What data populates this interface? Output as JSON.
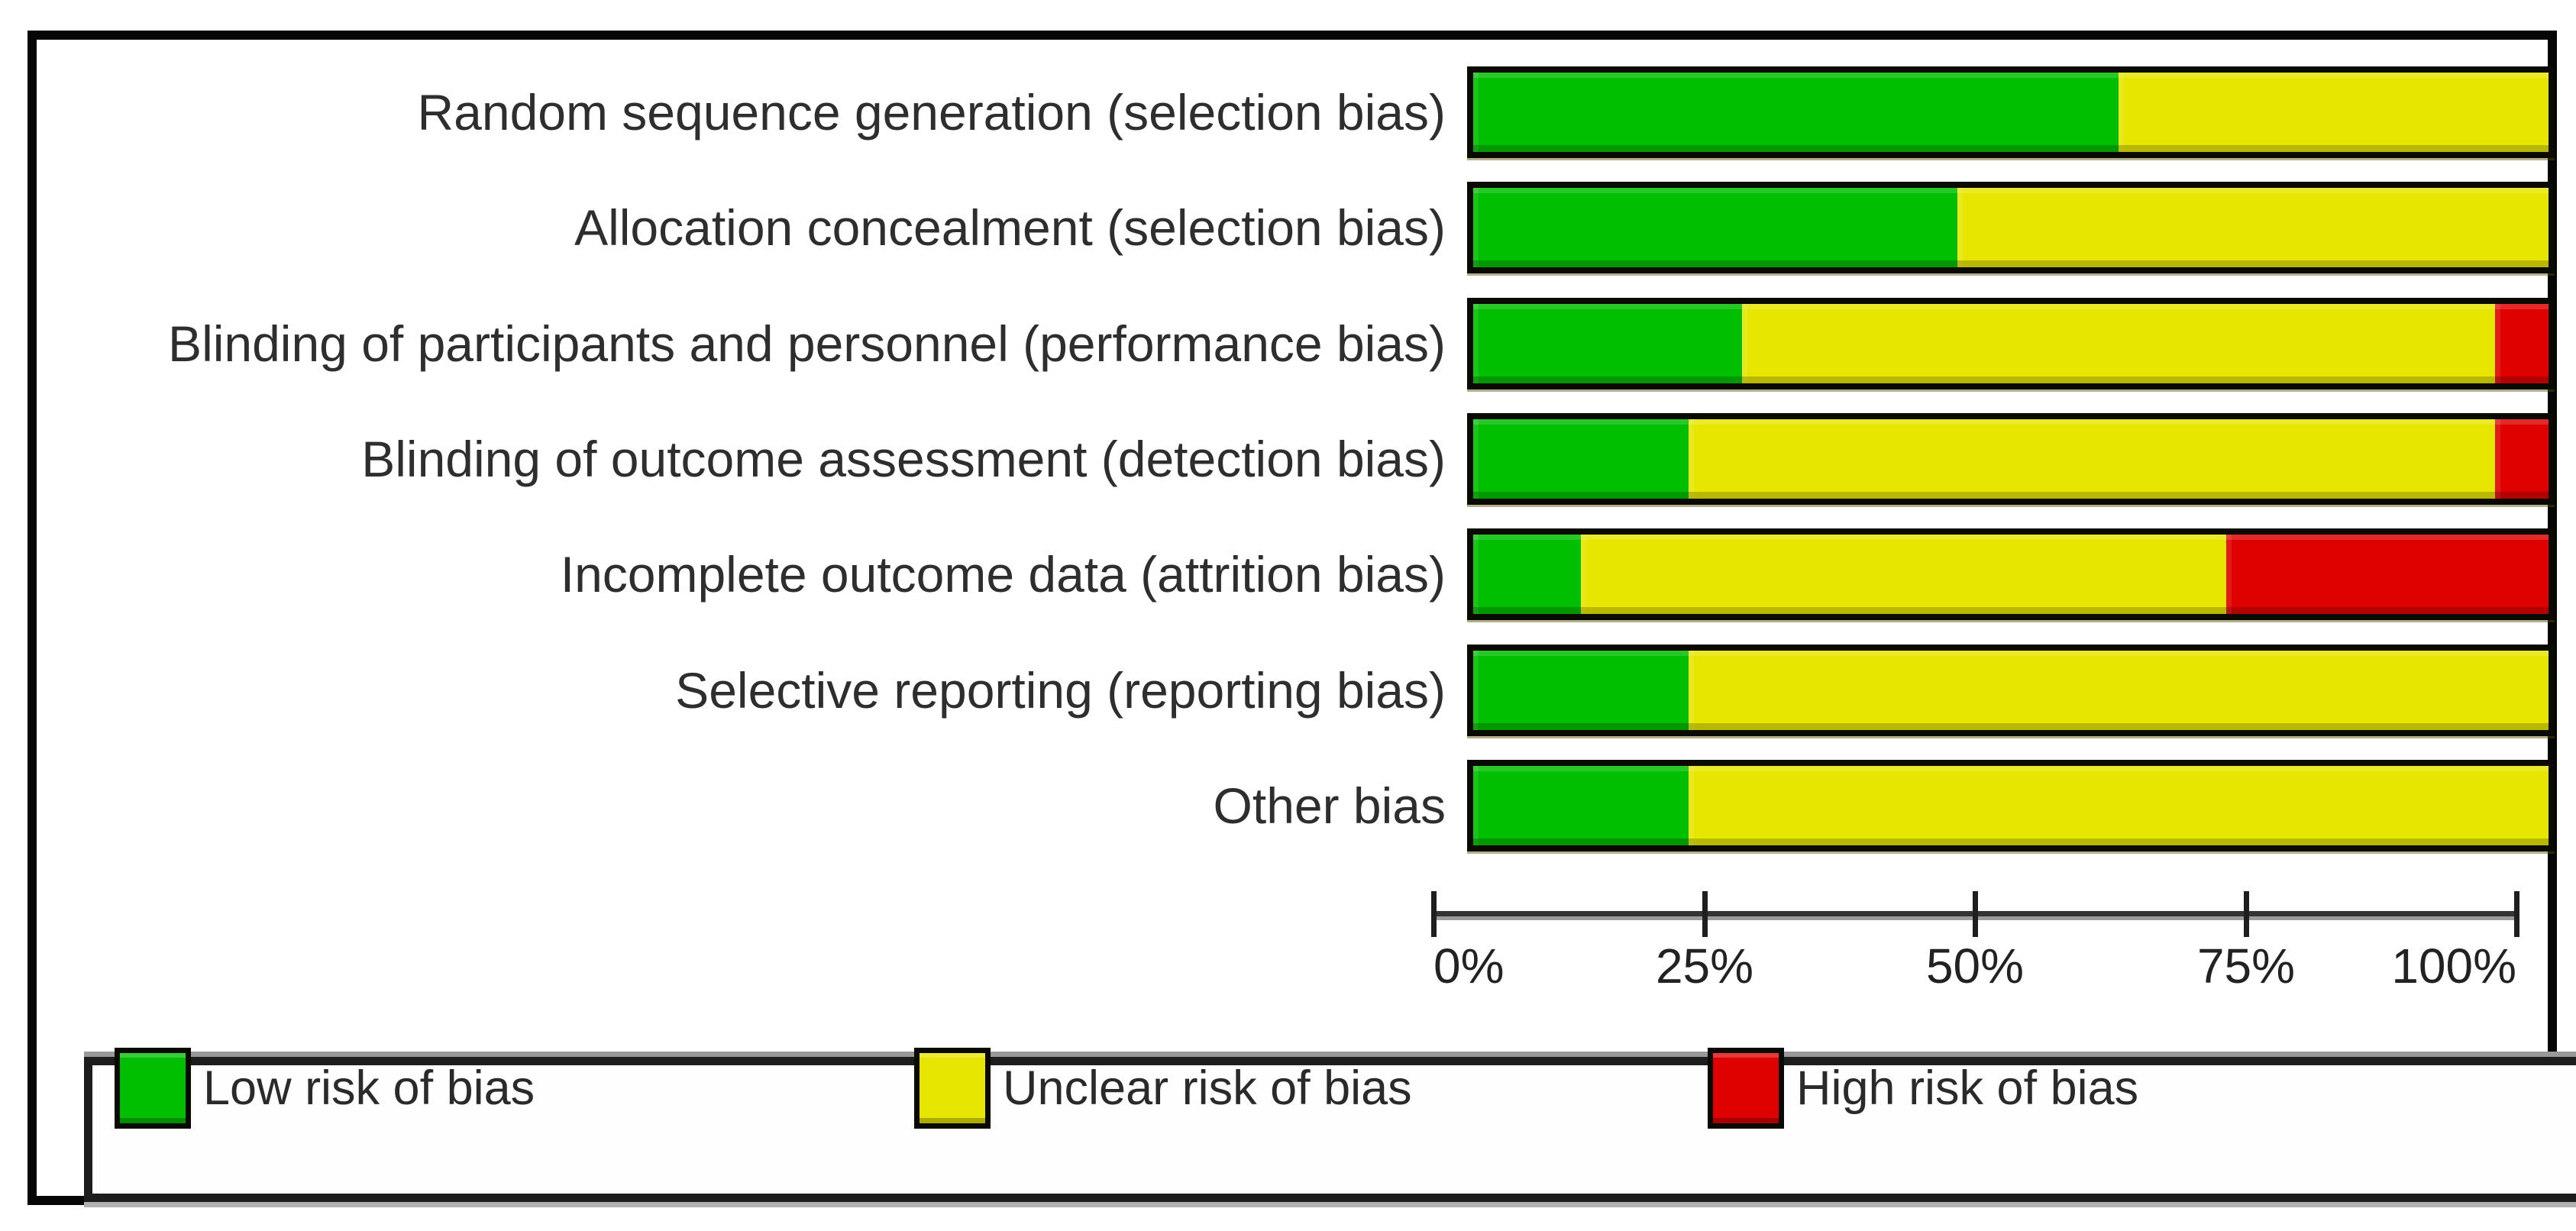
{
  "chart_data": {
    "type": "bar",
    "orientation": "horizontal-stacked",
    "categories": [
      "Random sequence generation (selection bias)",
      "Allocation concealment (selection bias)",
      "Blinding of participants and personnel (performance bias)",
      "Blinding of outcome assessment (detection bias)",
      "Incomplete outcome data (attrition bias)",
      "Selective reporting (reporting bias)",
      "Other bias"
    ],
    "series": [
      {
        "name": "Low risk of bias",
        "color": "#00BE00",
        "values": [
          60,
          45,
          25,
          20,
          10,
          20,
          20
        ]
      },
      {
        "name": "Unclear risk of bias",
        "color": "#E6E600",
        "values": [
          40,
          55,
          70,
          75,
          60,
          80,
          80
        ]
      },
      {
        "name": "High risk of bias",
        "color": "#DF0000",
        "values": [
          0,
          0,
          5,
          5,
          30,
          0,
          0
        ]
      }
    ],
    "xlim": [
      0,
      100
    ],
    "x_tick_labels": [
      "0%",
      "25%",
      "50%",
      "75%",
      "100%"
    ],
    "grid": false,
    "legend_position": "bottom",
    "colors": {
      "low_risk": "#00BE00",
      "unclear_risk": "#E6E600",
      "high_risk": "#DF0000",
      "bar_border": "#0a0a00",
      "axis": "#343434",
      "text": "#2e2e2e"
    }
  }
}
